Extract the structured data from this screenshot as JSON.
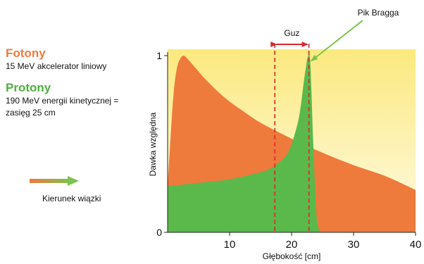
{
  "legend": {
    "photons": {
      "title": "Fotony",
      "desc": "15 MeV akcelerator liniowy"
    },
    "protons": {
      "title": "Protony",
      "desc_line1": "190 MeV energii kinetycznej =",
      "desc_line2": "zasięg 25 cm"
    },
    "beam_label": "Kierunek wiązki"
  },
  "colors": {
    "photons": "#ee7a3c",
    "protons": "#5ab94a",
    "tumor": "#d9272e",
    "arrow": "#7cc24e",
    "background_top": "#fbe97e",
    "background_bottom": "#fffbe6"
  },
  "chart_data": {
    "type": "area",
    "xlabel": "Głębokość [cm]",
    "ylabel": "Dawka względna",
    "xlim": [
      0,
      40
    ],
    "ylim": [
      0,
      1
    ],
    "x_ticks": [
      10,
      20,
      30,
      40
    ],
    "y_ticks": [
      0,
      1
    ],
    "series": [
      {
        "name": "Fotony",
        "x": [
          0,
          0.5,
          1,
          1.5,
          2,
          2.5,
          3,
          3.5,
          4,
          5,
          6,
          8,
          10,
          12,
          15,
          20,
          25,
          30,
          35,
          40
        ],
        "y": [
          0.26,
          0.55,
          0.8,
          0.93,
          0.98,
          1.0,
          0.99,
          0.97,
          0.95,
          0.91,
          0.87,
          0.8,
          0.74,
          0.69,
          0.62,
          0.53,
          0.45,
          0.38,
          0.32,
          0.24
        ]
      },
      {
        "name": "Protony",
        "x": [
          0,
          5,
          10,
          15,
          17,
          19,
          20,
          21,
          21.5,
          22,
          22.3,
          22.6,
          23,
          23.5,
          24,
          24.5,
          25
        ],
        "y": [
          0.26,
          0.28,
          0.3,
          0.34,
          0.37,
          0.43,
          0.5,
          0.62,
          0.72,
          0.86,
          0.93,
          0.99,
          0.97,
          0.5,
          0.1,
          0.01,
          0.0
        ]
      }
    ],
    "annotations": {
      "tumor": {
        "label": "Guz",
        "x_start": 17.3,
        "x_end": 22.8
      },
      "bragg_peak": {
        "label": "Pik Bragga",
        "x": 22.6,
        "y": 0.99
      }
    }
  }
}
